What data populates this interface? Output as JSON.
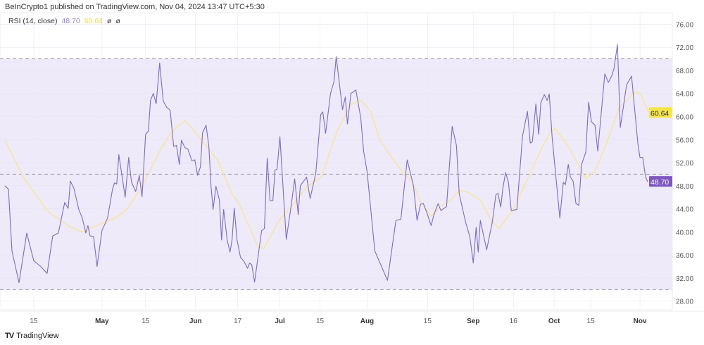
{
  "header": "BeInCrypto1 published on TradingView.com, Nov 04, 2024 13:47 UTC+5:30",
  "legend": {
    "name": "RSI (14, close)",
    "rsi_value": "48.70",
    "ma_value": "60.64",
    "sym1": "ø",
    "sym2": "ø"
  },
  "brand": "TradingView",
  "colors": {
    "rsi": "#7e6bbf",
    "ma": "#f3e6a6",
    "band": "#efeaf9",
    "rsi_label": "#7e57c2",
    "ma_label": "#f5e64a"
  },
  "chart_data": {
    "type": "line",
    "title": "RSI (14, close)",
    "xlabel": "",
    "ylabel": "",
    "xlim": [
      0,
      239
    ],
    "ylim": [
      26.5,
      78
    ],
    "grid": true,
    "band": {
      "upper": 70,
      "middle": 50,
      "lower": 30
    },
    "yticks": [
      "76.00",
      "72.00",
      "68.00",
      "64.00",
      "60.00",
      "56.00",
      "52.00",
      "48.00",
      "44.00",
      "40.00",
      "36.00",
      "32.00",
      "28.00"
    ],
    "xticks": [
      {
        "x": 12,
        "label": "15",
        "bold": false
      },
      {
        "x": 36.25,
        "label": "May",
        "bold": true
      },
      {
        "x": 51.75,
        "label": "15",
        "bold": false
      },
      {
        "x": 69.5,
        "label": "Jun",
        "bold": true
      },
      {
        "x": 84.5,
        "label": "17",
        "bold": false
      },
      {
        "x": 99.5,
        "label": "Jul",
        "bold": true
      },
      {
        "x": 113.75,
        "label": "15",
        "bold": false
      },
      {
        "x": 130.5,
        "label": "Aug",
        "bold": true
      },
      {
        "x": 152,
        "label": "15",
        "bold": false
      },
      {
        "x": 168.25,
        "label": "Sep",
        "bold": true
      },
      {
        "x": 182.5,
        "label": "16",
        "bold": false
      },
      {
        "x": 197,
        "label": "Oct",
        "bold": true
      },
      {
        "x": 210,
        "label": "15",
        "bold": false
      },
      {
        "x": 227.5,
        "label": "Nov",
        "bold": true
      }
    ],
    "last_labels": {
      "rsi": "48.70",
      "ma": "60.64"
    },
    "series": [
      {
        "name": "RSI",
        "points": [
          [
            1.75,
            48.0
          ],
          [
            3,
            47.4
          ],
          [
            4.25,
            36.7
          ],
          [
            6.75,
            31.2
          ],
          [
            9.5,
            39.8
          ],
          [
            12,
            35.0
          ],
          [
            14.5,
            34.0
          ],
          [
            16.75,
            32.8
          ],
          [
            18.75,
            39.3
          ],
          [
            20.75,
            39.8
          ],
          [
            23,
            45.1
          ],
          [
            24.25,
            44.1
          ],
          [
            25,
            48.8
          ],
          [
            26.25,
            47.6
          ],
          [
            28,
            43.9
          ],
          [
            29.25,
            42.4
          ],
          [
            30.5,
            39.8
          ],
          [
            31.25,
            41.1
          ],
          [
            32,
            39.3
          ],
          [
            33.25,
            39.2
          ],
          [
            34.5,
            34.0
          ],
          [
            36.25,
            40.2
          ],
          [
            38.25,
            42.4
          ],
          [
            40,
            47.4
          ],
          [
            40.75,
            48.5
          ],
          [
            41.5,
            48.3
          ],
          [
            42.25,
            53.4
          ],
          [
            44.5,
            46.0
          ],
          [
            45.75,
            52.9
          ],
          [
            46.75,
            48.6
          ],
          [
            48.25,
            47.0
          ],
          [
            49.5,
            49.8
          ],
          [
            50.5,
            46.1
          ],
          [
            51.75,
            56.9
          ],
          [
            52.75,
            57.5
          ],
          [
            53.5,
            62.8
          ],
          [
            54.5,
            64.0
          ],
          [
            55.5,
            62.2
          ],
          [
            56.75,
            69.3
          ],
          [
            58,
            62.7
          ],
          [
            59.25,
            61.6
          ],
          [
            60.5,
            61.1
          ],
          [
            61.75,
            54.8
          ],
          [
            62.75,
            55.0
          ],
          [
            63.75,
            51.7
          ],
          [
            64.5,
            55.9
          ],
          [
            65.75,
            54.6
          ],
          [
            66.75,
            54.4
          ],
          [
            68.25,
            52.3
          ],
          [
            69.25,
            52.5
          ],
          [
            70.25,
            49.8
          ],
          [
            71.25,
            51.3
          ],
          [
            72,
            57.2
          ],
          [
            73.25,
            58.5
          ],
          [
            74.25,
            54.8
          ],
          [
            75,
            48.0
          ],
          [
            75.75,
            43.9
          ],
          [
            76.75,
            47.9
          ],
          [
            78,
            45.5
          ],
          [
            78.75,
            38.6
          ],
          [
            79.5,
            43.9
          ],
          [
            80.75,
            38.6
          ],
          [
            81.75,
            36.5
          ],
          [
            82.5,
            38.7
          ],
          [
            83.25,
            44.1
          ],
          [
            84.25,
            38.7
          ],
          [
            85.5,
            35.6
          ],
          [
            86.75,
            34.9
          ],
          [
            88,
            33.7
          ],
          [
            88.75,
            34.6
          ],
          [
            89.5,
            34.3
          ],
          [
            90.5,
            31.3
          ],
          [
            93,
            40.2
          ],
          [
            94,
            40.6
          ],
          [
            95,
            52.8
          ],
          [
            96,
            45.4
          ],
          [
            97,
            45.4
          ],
          [
            97.75,
            50.7
          ],
          [
            98.5,
            50.9
          ],
          [
            99.5,
            56.5
          ],
          [
            101.75,
            38.7
          ],
          [
            103.25,
            43.7
          ],
          [
            104.75,
            49.2
          ],
          [
            106,
            43.0
          ],
          [
            106.75,
            48.0
          ],
          [
            109,
            49.5
          ],
          [
            110.25,
            45.8
          ],
          [
            112.25,
            50.1
          ],
          [
            114,
            60.3
          ],
          [
            114.75,
            60.8
          ],
          [
            115.75,
            57.1
          ],
          [
            117.5,
            64.0
          ],
          [
            118.75,
            66.1
          ],
          [
            119.5,
            70.4
          ],
          [
            121.75,
            61.2
          ],
          [
            122.75,
            63.4
          ],
          [
            123.5,
            58.7
          ],
          [
            124.75,
            64.0
          ],
          [
            126.5,
            64.6
          ],
          [
            128.25,
            59.7
          ],
          [
            129.25,
            54.0
          ],
          [
            130.5,
            50.4
          ],
          [
            133.25,
            36.7
          ],
          [
            137.75,
            31.6
          ],
          [
            140.75,
            42.0
          ],
          [
            142.5,
            42.2
          ],
          [
            144.75,
            52.5
          ],
          [
            147,
            47.9
          ],
          [
            148.25,
            42.0
          ],
          [
            149.5,
            44.8
          ],
          [
            150.5,
            44.9
          ],
          [
            151.75,
            43.3
          ],
          [
            153.25,
            41.1
          ],
          [
            154.25,
            43.0
          ],
          [
            155.75,
            44.9
          ],
          [
            156.75,
            43.7
          ],
          [
            158.75,
            44.4
          ],
          [
            160.75,
            58.3
          ],
          [
            162.25,
            55.0
          ],
          [
            163.25,
            46.6
          ],
          [
            165.5,
            41.7
          ],
          [
            167,
            39.2
          ],
          [
            168.25,
            34.6
          ],
          [
            169.25,
            40.8
          ],
          [
            170,
            36.5
          ],
          [
            170.75,
            42.0
          ],
          [
            173,
            36.9
          ],
          [
            175,
            41.7
          ],
          [
            176.25,
            46.4
          ],
          [
            177,
            46.7
          ],
          [
            178,
            44.3
          ],
          [
            178.75,
            47.6
          ],
          [
            179.75,
            50.3
          ],
          [
            180.75,
            48.6
          ],
          [
            181.75,
            43.7
          ],
          [
            183.75,
            43.9
          ],
          [
            185.75,
            56.6
          ],
          [
            187.5,
            60.9
          ],
          [
            188.5,
            55.4
          ],
          [
            189.25,
            55.6
          ],
          [
            190.5,
            62.2
          ],
          [
            191.5,
            56.9
          ],
          [
            192.25,
            62.4
          ],
          [
            193.5,
            63.8
          ],
          [
            194.5,
            62.8
          ],
          [
            195.25,
            63.9
          ],
          [
            196.25,
            56.5
          ],
          [
            199,
            42.4
          ],
          [
            200.25,
            48.6
          ],
          [
            201,
            48.2
          ],
          [
            202,
            51.7
          ],
          [
            202.75,
            49.5
          ],
          [
            203.75,
            48.8
          ],
          [
            204.75,
            44.9
          ],
          [
            205.75,
            44.6
          ],
          [
            206.75,
            51.7
          ],
          [
            208.25,
            53.8
          ],
          [
            209.25,
            62.5
          ],
          [
            210.25,
            59.1
          ],
          [
            211.5,
            58.5
          ],
          [
            212.5,
            54.0
          ],
          [
            215,
            67.4
          ],
          [
            216.25,
            65.9
          ],
          [
            217.5,
            67.1
          ],
          [
            218.25,
            68.3
          ],
          [
            219.5,
            72.5
          ],
          [
            220.5,
            58.1
          ],
          [
            222.75,
            65.5
          ],
          [
            224.5,
            67.0
          ],
          [
            226.75,
            55.3
          ],
          [
            227.5,
            52.9
          ],
          [
            228.5,
            52.9
          ],
          [
            229.5,
            49.5
          ],
          [
            230.25,
            48.7
          ]
        ]
      },
      {
        "name": "RSI-based MA",
        "points": [
          [
            1.75,
            55.9
          ],
          [
            8.25,
            49.5
          ],
          [
            16.75,
            43.7
          ],
          [
            25,
            40.8
          ],
          [
            29.25,
            40.0
          ],
          [
            35,
            41.2
          ],
          [
            41.75,
            42.6
          ],
          [
            45,
            43.9
          ],
          [
            50,
            47.4
          ],
          [
            56.75,
            54.0
          ],
          [
            60.75,
            57.2
          ],
          [
            65.75,
            59.3
          ],
          [
            70.75,
            56.5
          ],
          [
            77.5,
            52.3
          ],
          [
            82.5,
            46.6
          ],
          [
            85,
            44.9
          ],
          [
            91.75,
            37.4
          ],
          [
            93.75,
            37.1
          ],
          [
            99.25,
            42.0
          ],
          [
            104.25,
            44.8
          ],
          [
            109.25,
            47.9
          ],
          [
            114.25,
            49.5
          ],
          [
            120,
            57.7
          ],
          [
            125,
            62.2
          ],
          [
            128.25,
            62.8
          ],
          [
            131.75,
            60.9
          ],
          [
            135,
            56.0
          ],
          [
            138.25,
            53.5
          ],
          [
            143.25,
            50.3
          ],
          [
            146.75,
            48.6
          ],
          [
            149.25,
            45.4
          ],
          [
            153.25,
            42.7
          ],
          [
            156.75,
            44.5
          ],
          [
            160,
            45.4
          ],
          [
            163.25,
            47.2
          ],
          [
            165.75,
            47.0
          ],
          [
            170.75,
            45.5
          ],
          [
            175,
            41.7
          ],
          [
            177.5,
            40.6
          ],
          [
            182.5,
            43.9
          ],
          [
            187.5,
            49.1
          ],
          [
            192.5,
            54.4
          ],
          [
            195.75,
            57.5
          ],
          [
            197.5,
            57.9
          ],
          [
            201.75,
            55.0
          ],
          [
            205.75,
            51.6
          ],
          [
            208.25,
            49.2
          ],
          [
            211.75,
            50.7
          ],
          [
            216.75,
            56.9
          ],
          [
            220,
            61.5
          ],
          [
            225.75,
            64.3
          ],
          [
            228,
            63.7
          ],
          [
            230.5,
            60.8
          ]
        ]
      }
    ]
  }
}
